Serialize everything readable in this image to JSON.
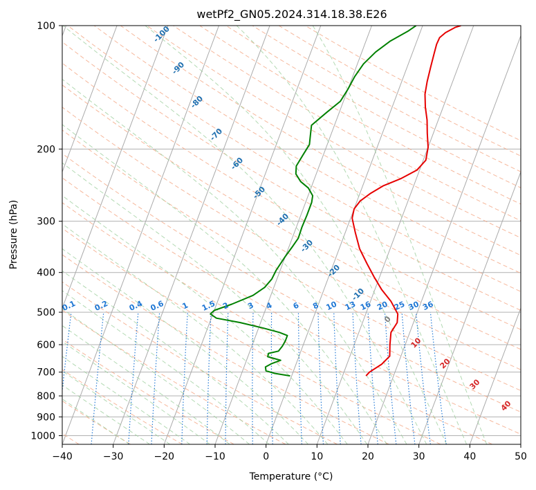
{
  "chart_data": {
    "type": "line",
    "title": "wetPf2_GN05.2024.314.18.38.E26",
    "xlabel": "Temperature (°C)",
    "ylabel": "Pressure (hPa)",
    "xlim": [
      -40,
      50
    ],
    "ylim": [
      1050,
      100
    ],
    "y_scale": "log",
    "grid": true,
    "x_ticks": [
      "−40",
      "−30",
      "−20",
      "−10",
      "0",
      "10",
      "20",
      "30",
      "40",
      "50"
    ],
    "y_ticks": [
      "100",
      "200",
      "300",
      "400",
      "500",
      "600",
      "700",
      "800",
      "900",
      "1000"
    ],
    "colors": {
      "temperature": "#e60000",
      "dewpoint": "#008000",
      "isotherm": "#aaaaaa",
      "dry_adiabat": "#f4a582",
      "moist_adiabat": "#9fd09f",
      "mixing_ratio": "#1f77d4",
      "isotherm_label": "#2070b0",
      "moist_label": "#d62728",
      "zero_label": "#808080"
    },
    "series": [
      {
        "key": "temperature",
        "points": [
          [
            14.6,
            715
          ],
          [
            15.0,
            700
          ],
          [
            16.8,
            670
          ],
          [
            17.8,
            640
          ],
          [
            17.0,
            600
          ],
          [
            16.3,
            560
          ],
          [
            16.8,
            530
          ],
          [
            16.3,
            505
          ],
          [
            14.0,
            470
          ],
          [
            11.3,
            440
          ],
          [
            8.9,
            410
          ],
          [
            6.5,
            380
          ],
          [
            4.0,
            350
          ],
          [
            2.0,
            320
          ],
          [
            0.3,
            295
          ],
          [
            0.0,
            280
          ],
          [
            0.6,
            268
          ],
          [
            2.0,
            257
          ],
          [
            4.0,
            246
          ],
          [
            7.0,
            236
          ],
          [
            9.5,
            225
          ],
          [
            10.5,
            213
          ],
          [
            10.0,
            198
          ],
          [
            8.8,
            183
          ],
          [
            7.8,
            170
          ],
          [
            6.5,
            158
          ],
          [
            5.5,
            147
          ],
          [
            5.0,
            137
          ],
          [
            4.6,
            126
          ],
          [
            4.3,
            117
          ],
          [
            4.1,
            111
          ],
          [
            4.2,
            107
          ],
          [
            5.0,
            104
          ],
          [
            6.5,
            101
          ],
          [
            7.5,
            100
          ]
        ]
      },
      {
        "key": "dewpoint",
        "points": [
          [
            -0.3,
            715
          ],
          [
            -3.5,
            705
          ],
          [
            -5.4,
            695
          ],
          [
            -5.8,
            680
          ],
          [
            -4.8,
            667
          ],
          [
            -3.3,
            655
          ],
          [
            -6.1,
            642
          ],
          [
            -6.2,
            630
          ],
          [
            -4.4,
            622
          ],
          [
            -4.0,
            605
          ],
          [
            -3.8,
            588
          ],
          [
            -3.8,
            570
          ],
          [
            -5.6,
            560
          ],
          [
            -9.0,
            547
          ],
          [
            -14.0,
            530
          ],
          [
            -19.0,
            517
          ],
          [
            -20.5,
            505
          ],
          [
            -20.0,
            495
          ],
          [
            -17.0,
            478
          ],
          [
            -13.5,
            455
          ],
          [
            -11.8,
            435
          ],
          [
            -11.0,
            415
          ],
          [
            -10.8,
            395
          ],
          [
            -10.0,
            365
          ],
          [
            -9.3,
            345
          ],
          [
            -8.8,
            330
          ],
          [
            -8.9,
            310
          ],
          [
            -8.8,
            290
          ],
          [
            -8.8,
            270
          ],
          [
            -9.1,
            260
          ],
          [
            -10.5,
            249
          ],
          [
            -12.5,
            240
          ],
          [
            -14.0,
            230
          ],
          [
            -14.5,
            220
          ],
          [
            -14.0,
            207
          ],
          [
            -13.5,
            195
          ],
          [
            -14.0,
            185
          ],
          [
            -14.5,
            175
          ],
          [
            -12.5,
            163
          ],
          [
            -10.6,
            153
          ],
          [
            -10.0,
            143
          ],
          [
            -9.6,
            133
          ],
          [
            -8.8,
            124
          ],
          [
            -7.3,
            116
          ],
          [
            -5.2,
            109
          ],
          [
            -2.4,
            103
          ],
          [
            -1.3,
            100
          ]
        ]
      }
    ],
    "isotherm_labels": [
      "-100",
      "-90",
      "-80",
      "-70",
      "-60",
      "-50",
      "-40",
      "-30",
      "-20",
      "-10"
    ],
    "mixing_ratio_labels": [
      "0.1",
      "0.2",
      "0.4",
      "0.6",
      "1",
      "1.5",
      "2",
      "3",
      "4",
      "6",
      "8",
      "10",
      "13",
      "16",
      "20",
      "25",
      "30",
      "36"
    ],
    "moist_adiabat_labels": [
      "0",
      "10",
      "20",
      "30",
      "40"
    ]
  }
}
